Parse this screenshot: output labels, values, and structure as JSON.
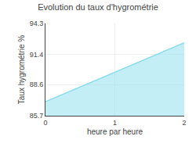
{
  "chart_data": {
    "type": "area",
    "title": "Evolution du taux d'hygrométrie",
    "x_label": "heure par heure",
    "y_label": "Taux hygrométrie %",
    "x": [
      0,
      2
    ],
    "values": [
      87.0,
      92.5
    ],
    "color": "#88ddee",
    "xlim": [
      0,
      2
    ],
    "xticks": [
      0,
      1,
      2
    ],
    "ylim": [
      85.7,
      94.3
    ],
    "yticks": [
      85.7,
      88.6,
      91.4,
      94.3
    ],
    "grid": true
  }
}
